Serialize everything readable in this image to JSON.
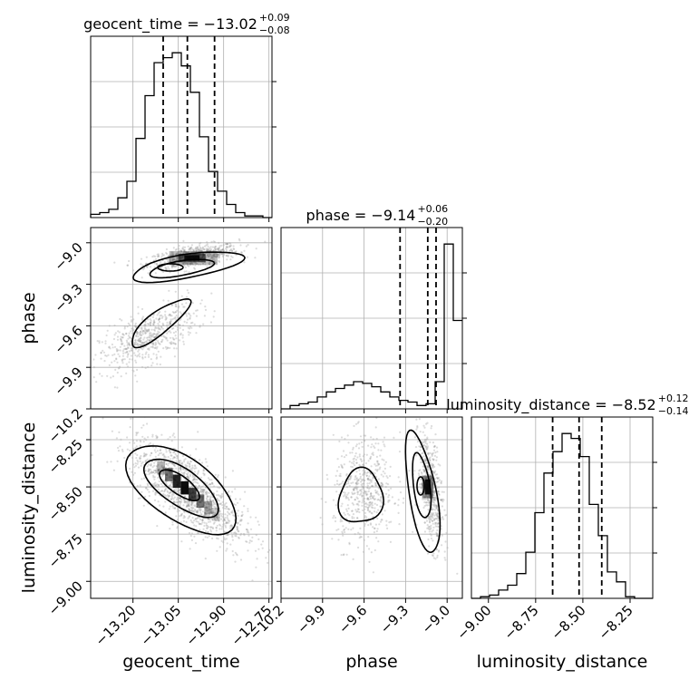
{
  "chart_data": {
    "type": "corner",
    "parameters": [
      "geocent_time",
      "phase",
      "luminosity_distance"
    ],
    "titles": [
      {
        "name": "geocent_time",
        "median": "−13.02",
        "plus": "+0.09",
        "minus": "−0.08"
      },
      {
        "name": "phase",
        "median": "−9.14",
        "plus": "+0.06",
        "minus": "−0.20"
      },
      {
        "name": "luminosity_distance",
        "median": "−8.52",
        "plus": "+0.12",
        "minus": "−0.14"
      }
    ],
    "ranges": {
      "geocent_time": [
        -13.34,
        -12.74
      ],
      "phase": [
        -10.2,
        -8.89
      ],
      "luminosity_distance": [
        -9.09,
        -8.13
      ]
    },
    "ticks": {
      "geocent_time": [
        -13.2,
        -13.05,
        -12.9,
        -12.75
      ],
      "phase": [
        -10.2,
        -9.9,
        -9.6,
        -9.3,
        -9.0
      ],
      "luminosity_distance": [
        -9.0,
        -8.75,
        -8.5,
        -8.25
      ]
    },
    "tick_labels": {
      "geocent_time": [
        "−13.20",
        "−13.05",
        "−12.90",
        "−12.75"
      ],
      "phase": [
        "−10.2",
        "−9.9",
        "−9.6",
        "−9.3",
        "−9.0"
      ],
      "luminosity_distance": [
        "−9.00",
        "−8.75",
        "−8.50",
        "−8.25"
      ]
    },
    "quantiles": {
      "geocent_time": [
        -13.1,
        -13.02,
        -12.93
      ],
      "phase": [
        -9.34,
        -9.14,
        -9.08
      ],
      "luminosity_distance": [
        -8.66,
        -8.52,
        -8.4
      ]
    },
    "histograms": {
      "geocent_time": {
        "edges_start": -13.34,
        "bin_width": 0.03,
        "counts": [
          0.02,
          0.03,
          0.05,
          0.12,
          0.22,
          0.48,
          0.74,
          0.94,
          0.97,
          1.0,
          0.92,
          0.76,
          0.49,
          0.28,
          0.16,
          0.08,
          0.03,
          0.01,
          0.01,
          0.0
        ]
      },
      "phase": {
        "edges_start": -10.2,
        "bin_width": 0.0655,
        "counts": [
          0.0,
          0.02,
          0.03,
          0.04,
          0.07,
          0.1,
          0.12,
          0.14,
          0.16,
          0.15,
          0.13,
          0.1,
          0.07,
          0.05,
          0.04,
          0.02,
          0.03,
          0.16,
          0.97,
          0.52
        ]
      },
      "luminosity_distance": {
        "edges_start": -9.09,
        "bin_width": 0.048,
        "counts": [
          0.0,
          0.01,
          0.02,
          0.05,
          0.08,
          0.15,
          0.28,
          0.52,
          0.76,
          0.89,
          1.0,
          0.97,
          0.86,
          0.57,
          0.38,
          0.16,
          0.1,
          0.01,
          0.0,
          0.0
        ]
      }
    },
    "grid": true,
    "scatter_color": "#808080",
    "contour_color": "#000000"
  }
}
